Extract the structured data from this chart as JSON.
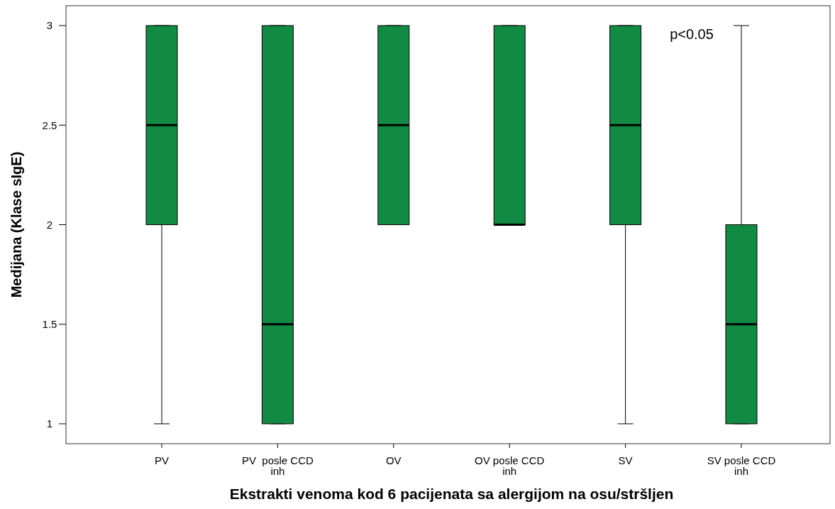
{
  "chart_data": {
    "type": "box",
    "xlabel": "Ekstrakti venoma kod 6 pacijenata sa alergijom na osu/stršljen",
    "ylabel": "Medijana (Klase sIgE)",
    "categories": [
      "PV",
      "PV  posle CCD\ninh",
      "OV",
      "OV posle CCD\ninh",
      "SV",
      "SV posle CCD\ninh"
    ],
    "boxes": [
      {
        "low": 1,
        "q1": 2,
        "median": 2.5,
        "q3": 3,
        "high": 3
      },
      {
        "low": 1,
        "q1": 1,
        "median": 1.5,
        "q3": 3,
        "high": 3
      },
      {
        "low": 2,
        "q1": 2,
        "median": 2.5,
        "q3": 3,
        "high": 3
      },
      {
        "low": 2,
        "q1": 2,
        "median": 2,
        "q3": 3,
        "high": 3
      },
      {
        "low": 1,
        "q1": 2,
        "median": 2.5,
        "q3": 3,
        "high": 3
      },
      {
        "low": 1,
        "q1": 1,
        "median": 1.5,
        "q3": 2,
        "high": 3
      }
    ],
    "color": "#138a43",
    "ylim": [
      0.9,
      3.1
    ],
    "yticks": [
      1,
      1.5,
      2,
      2.5,
      3
    ],
    "grid": false,
    "annotations": [
      "p<0.05"
    ]
  }
}
